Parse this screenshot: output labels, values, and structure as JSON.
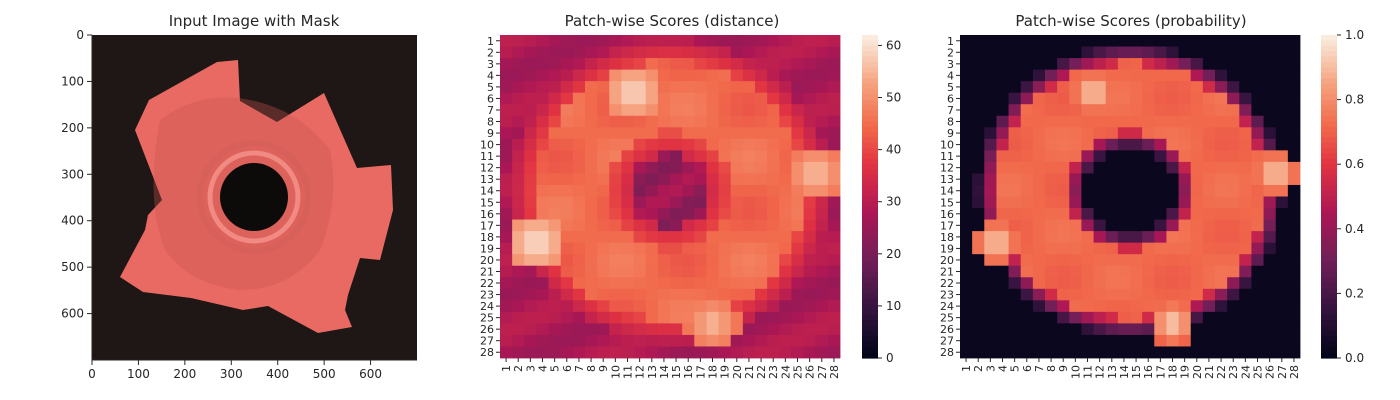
{
  "chart_data": [
    {
      "type": "image",
      "title": "Input Image with Mask",
      "xticks": [
        0,
        100,
        200,
        300,
        400,
        500,
        600
      ],
      "yticks": [
        0,
        100,
        200,
        300,
        400,
        500,
        600
      ],
      "xlim": [
        0,
        700
      ],
      "ylim": [
        700,
        0
      ],
      "image_size": [
        700,
        700
      ],
      "subject": "metal nut with red mask overlay on dark background"
    },
    {
      "type": "heatmap",
      "title": "Patch-wise Scores (distance)",
      "rows": [
        "1",
        "2",
        "3",
        "4",
        "5",
        "6",
        "7",
        "8",
        "9",
        "10",
        "11",
        "12",
        "13",
        "14",
        "15",
        "16",
        "17",
        "18",
        "19",
        "20",
        "21",
        "22",
        "23",
        "24",
        "25",
        "26",
        "27",
        "28"
      ],
      "cols": [
        "1",
        "2",
        "3",
        "4",
        "5",
        "6",
        "7",
        "8",
        "9",
        "10",
        "11",
        "12",
        "13",
        "14",
        "15",
        "16",
        "17",
        "18",
        "19",
        "20",
        "21",
        "22",
        "23",
        "24",
        "25",
        "26",
        "27",
        "28"
      ],
      "colorbar": {
        "min": 0,
        "max": 62,
        "ticks": [
          0,
          10,
          20,
          30,
          40,
          50,
          60
        ]
      },
      "colormap": "rocket",
      "inner_hole_center": [
        14,
        14.5
      ],
      "inner_hole_radius": 4.3,
      "outer_radius": 13.2,
      "hotspots": [
        {
          "row": 5.5,
          "col": 11.5,
          "value": 61
        },
        {
          "row": 18.5,
          "col": 3.5,
          "value": 62
        },
        {
          "row": 25.5,
          "col": 18,
          "value": 57
        },
        {
          "row": 12.5,
          "col": 26.5,
          "value": 58
        }
      ]
    },
    {
      "type": "heatmap",
      "title": "Patch-wise Scores (probability)",
      "rows": [
        "1",
        "2",
        "3",
        "4",
        "5",
        "6",
        "7",
        "8",
        "9",
        "10",
        "11",
        "12",
        "13",
        "14",
        "15",
        "16",
        "17",
        "18",
        "19",
        "20",
        "21",
        "22",
        "23",
        "24",
        "25",
        "26",
        "27",
        "28"
      ],
      "cols": [
        "1",
        "2",
        "3",
        "4",
        "5",
        "6",
        "7",
        "8",
        "9",
        "10",
        "11",
        "12",
        "13",
        "14",
        "15",
        "16",
        "17",
        "18",
        "19",
        "20",
        "21",
        "22",
        "23",
        "24",
        "25",
        "26",
        "27",
        "28"
      ],
      "colorbar": {
        "min": 0.0,
        "max": 1.0,
        "ticks": [
          "0.0",
          "0.2",
          "0.4",
          "0.6",
          "0.8",
          "1.0"
        ]
      },
      "colormap": "rocket",
      "inner_hole_center": [
        14,
        14.5
      ],
      "inner_hole_radius": 4.3,
      "outer_radius": 12.6
    }
  ],
  "colors": {
    "mask": "#e86a63",
    "background": "#1e1716",
    "hole": "#0d0a0a"
  }
}
